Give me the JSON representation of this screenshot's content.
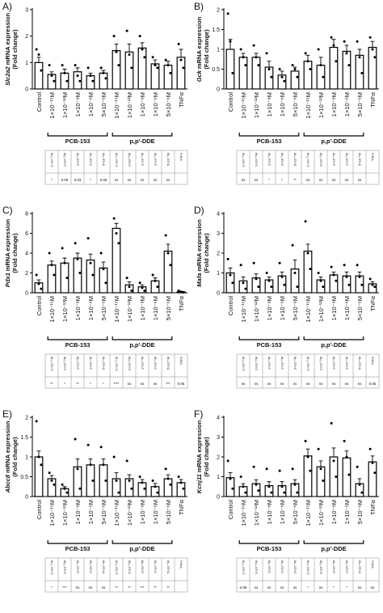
{
  "chart_data": [
    {
      "type": "bar",
      "panel": "A)",
      "gene": "Slc2a2",
      "ylabel": [
        "mRNA expression",
        "(Fold change)"
      ],
      "color": "#ffffff",
      "categories": [
        "Control",
        "1×10⁻¹⁵M",
        "1×10⁻¹²M",
        "1×10⁻⁹M",
        "1×10⁻⁶M",
        "5×10⁻⁶M",
        "1×10⁻¹⁵M",
        "1×10⁻¹²M",
        "1×10⁻⁹M",
        "1×10⁻⁶M",
        "5×10⁻⁶M",
        "TNFα"
      ],
      "groups": [
        "PCB-153",
        "p,p'-DDE"
      ],
      "values": [
        1.0,
        0.55,
        0.6,
        0.65,
        0.5,
        0.6,
        1.45,
        1.4,
        1.55,
        0.95,
        0.9,
        1.2
      ],
      "errors": [
        0.2,
        0.1,
        0.15,
        0.15,
        0.1,
        0.1,
        0.25,
        0.3,
        0.2,
        0.15,
        0.15,
        0.3
      ],
      "points": [
        [
          1.5,
          1.3,
          0.7
        ],
        [
          0.9,
          0.5,
          0.3
        ],
        [
          0.9,
          0.6,
          0.3
        ],
        [
          0.9,
          0.5,
          0.3
        ],
        [
          0.8,
          0.5,
          0.3
        ],
        [
          0.8,
          0.6,
          0.4
        ],
        [
          2.0,
          1.4,
          0.9
        ],
        [
          2.2,
          1.3,
          0.8
        ],
        [
          2.0,
          1.5,
          1.2
        ],
        [
          1.2,
          0.9,
          0.8
        ],
        [
          1.1,
          0.9,
          0.6
        ],
        [
          1.7,
          1.1,
          0.8
        ]
      ],
      "significance": [
        "*",
        "0.05",
        "0.03",
        "*",
        "0.05",
        "ns",
        "ns",
        "ns",
        "ns",
        "ns",
        null
      ],
      "ylim": [
        0,
        3
      ],
      "yticks": [
        0,
        1,
        2,
        3
      ]
    },
    {
      "type": "bar",
      "panel": "B)",
      "gene": "Gck",
      "ylabel": [
        "mRNA expression",
        "(Fold change)"
      ],
      "color": "#ffffff",
      "categories": [
        "Control",
        "1×10⁻¹⁵M",
        "1×10⁻¹²M",
        "1×10⁻⁹M",
        "1×10⁻⁶M",
        "5×10⁻⁶M",
        "1×10⁻¹⁵M",
        "1×10⁻¹²M",
        "1×10⁻⁹M",
        "1×10⁻⁶M",
        "5×10⁻⁶M",
        "TNFα"
      ],
      "groups": [
        "PCB-153",
        "p,p'-DDE"
      ],
      "values": [
        1.0,
        0.8,
        0.8,
        0.55,
        0.35,
        0.45,
        0.7,
        0.6,
        1.05,
        0.95,
        0.85,
        1.05
      ],
      "errors": [
        0.25,
        0.1,
        0.1,
        0.15,
        0.1,
        0.1,
        0.15,
        0.2,
        0.2,
        0.15,
        0.15,
        0.15
      ],
      "points": [
        [
          1.9,
          1.2,
          0.4
        ],
        [
          1.0,
          0.8,
          0.6
        ],
        [
          1.1,
          0.8,
          0.6
        ],
        [
          0.9,
          0.5,
          0.3
        ],
        [
          0.5,
          0.3,
          0.2
        ],
        [
          0.6,
          0.5,
          0.3
        ],
        [
          0.9,
          0.7,
          0.5
        ],
        [
          1.0,
          0.6,
          0.3
        ],
        [
          1.3,
          1.1,
          0.7
        ],
        [
          1.2,
          0.9,
          0.6
        ],
        [
          1.2,
          0.8,
          0.4
        ],
        [
          1.3,
          1.0,
          0.8
        ]
      ],
      "significance": [
        "ns",
        "ns",
        "*",
        "*",
        "**",
        "ns",
        "ns",
        "ns",
        "ns",
        "ns",
        null
      ],
      "ylim": [
        0,
        2
      ],
      "yticks": [
        0,
        0.5,
        1,
        1.5,
        2
      ]
    },
    {
      "type": "bar",
      "panel": "C)",
      "gene": "Pdx1",
      "ylabel": [
        "mRNA expression",
        "(Fold change)"
      ],
      "color": "#ffffff",
      "categories": [
        "Control",
        "1×10⁻¹⁵M",
        "1×10⁻¹²M",
        "1×10⁻⁹M",
        "1×10⁻⁶M",
        "5×10⁻⁶M",
        "1×10⁻¹⁵M",
        "1×10⁻¹²M",
        "1×10⁻⁹M",
        "1×10⁻⁶M",
        "5×10⁻⁶M",
        "TNFα"
      ],
      "groups": [
        "PCB-153",
        "p,p'-DDE"
      ],
      "values": [
        1.0,
        2.8,
        3.0,
        3.5,
        3.3,
        2.5,
        6.5,
        0.8,
        0.6,
        1.2,
        4.2,
        0.1
      ],
      "errors": [
        0.3,
        0.4,
        0.5,
        0.5,
        0.6,
        0.6,
        0.5,
        0.3,
        0.2,
        0.3,
        0.7,
        0.05
      ],
      "points": [
        [
          1.8,
          0.9,
          0.4
        ],
        [
          4.0,
          2.8,
          1.8
        ],
        [
          4.5,
          3.0,
          1.5
        ],
        [
          5.0,
          3.4,
          2.0
        ],
        [
          5.5,
          3.0,
          1.8
        ],
        [
          4.0,
          2.4,
          1.0
        ],
        [
          7.5,
          6.0,
          5.0
        ],
        [
          1.5,
          0.6,
          0.2
        ],
        [
          1.0,
          0.5,
          0.2
        ],
        [
          1.8,
          1.2,
          0.6
        ],
        [
          5.8,
          4.0,
          2.8
        ],
        [
          0.2,
          0.1,
          0.05
        ]
      ],
      "significance": [
        "**",
        "*",
        "**",
        "*",
        "*",
        "****",
        "ns",
        "ns",
        "ns",
        "***",
        "0.05"
      ],
      "ylim": [
        0,
        8
      ],
      "yticks": [
        0,
        2,
        4,
        6,
        8
      ]
    },
    {
      "type": "bar",
      "panel": "D)",
      "gene": "Mafa",
      "ylabel": [
        "mRNA expression",
        "(Fold change)"
      ],
      "color": "#ffffff",
      "categories": [
        "Control",
        "1×10⁻¹⁵M",
        "1×10⁻¹²M",
        "1×10⁻⁹M",
        "1×10⁻⁶M",
        "5×10⁻⁶M",
        "1×10⁻¹⁵M",
        "1×10⁻¹²M",
        "1×10⁻⁹M",
        "1×10⁻⁶M",
        "5×10⁻⁶M",
        "TNFα"
      ],
      "groups": [
        "PCB-153",
        "p,p'-DDE"
      ],
      "values": [
        1.0,
        0.6,
        0.75,
        0.65,
        0.85,
        1.2,
        2.1,
        0.65,
        0.9,
        0.85,
        0.85,
        0.45
      ],
      "errors": [
        0.25,
        0.2,
        0.2,
        0.15,
        0.2,
        0.45,
        0.35,
        0.15,
        0.15,
        0.2,
        0.2,
        0.1
      ],
      "points": [
        [
          1.7,
          0.9,
          0.5
        ],
        [
          1.4,
          0.5,
          0.2
        ],
        [
          1.5,
          0.7,
          0.3
        ],
        [
          1.0,
          0.6,
          0.3
        ],
        [
          1.5,
          0.8,
          0.4
        ],
        [
          2.4,
          1.0,
          0.3
        ],
        [
          3.6,
          2.0,
          1.2
        ],
        [
          1.0,
          0.6,
          0.3
        ],
        [
          1.3,
          0.9,
          0.6
        ],
        [
          1.4,
          0.8,
          0.4
        ],
        [
          1.4,
          0.8,
          0.4
        ],
        [
          0.7,
          0.4,
          0.3
        ]
      ],
      "significance": [
        "ns",
        "ns",
        "ns",
        "ns",
        "ns",
        "ns",
        "ns",
        "ns",
        "ns",
        "ns",
        "0.05"
      ],
      "ylim": [
        0,
        4
      ],
      "yticks": [
        0,
        1,
        2,
        3,
        4
      ]
    },
    {
      "type": "bar",
      "panel": "E)",
      "gene": "Abcc8",
      "ylabel": [
        "mRNA expression",
        "(Fold change)"
      ],
      "color": "#ffffff",
      "categories": [
        "Control",
        "1×10⁻¹⁵M",
        "1×10⁻¹²M",
        "1×10⁻⁹M",
        "1×10⁻⁶M",
        "5×10⁻⁶M",
        "1×10⁻¹⁵M",
        "1×10⁻¹²M",
        "1×10⁻⁹M",
        "1×10⁻⁶M",
        "5×10⁻⁶M",
        "TNFα"
      ],
      "groups": [
        "PCB-153",
        "p,p'-DDE"
      ],
      "values": [
        1.0,
        0.45,
        0.2,
        0.75,
        0.8,
        0.8,
        0.45,
        0.45,
        0.35,
        0.25,
        0.45,
        0.35
      ],
      "errors": [
        0.15,
        0.08,
        0.05,
        0.2,
        0.15,
        0.15,
        0.15,
        0.1,
        0.08,
        0.08,
        0.1,
        0.08
      ],
      "points": [
        [
          1.9,
          1.0,
          0.8
        ],
        [
          0.6,
          0.4,
          0.3
        ],
        [
          0.3,
          0.2,
          0.1
        ],
        [
          1.45,
          0.7,
          0.2
        ],
        [
          1.3,
          0.8,
          0.4
        ],
        [
          1.25,
          0.8,
          0.4
        ],
        [
          1.0,
          0.4,
          0.1
        ],
        [
          0.9,
          0.4,
          0.2
        ],
        [
          0.5,
          0.35,
          0.2
        ],
        [
          0.4,
          0.25,
          0.1
        ],
        [
          0.7,
          0.45,
          0.3
        ],
        [
          0.5,
          0.35,
          0.2
        ]
      ],
      "significance": [
        "*",
        "***",
        "ns",
        "ns",
        "ns",
        "**",
        "**",
        "***",
        "**",
        "**",
        null
      ],
      "ylim": [
        0,
        2
      ],
      "yticks": [
        0,
        0.5,
        1,
        1.5,
        2
      ]
    },
    {
      "type": "bar",
      "panel": "F)",
      "gene": "Kcnj11",
      "ylabel": [
        "mRNA expression",
        "(Fold change)"
      ],
      "color": "#ffffff",
      "categories": [
        "Control",
        "1×10⁻¹⁵M",
        "1×10⁻¹²M",
        "1×10⁻⁹M",
        "1×10⁻⁶M",
        "5×10⁻⁶M",
        "1×10⁻¹⁵M",
        "1×10⁻¹²M",
        "1×10⁻⁹M",
        "1×10⁻⁶M",
        "5×10⁻⁶M",
        "TNFα"
      ],
      "groups": [
        "PCB-153",
        "p,p'-DDE"
      ],
      "values": [
        0.95,
        0.5,
        0.65,
        0.55,
        0.55,
        0.65,
        2.05,
        1.5,
        2.0,
        1.95,
        0.65,
        1.75
      ],
      "errors": [
        0.25,
        0.15,
        0.2,
        0.2,
        0.2,
        0.2,
        0.35,
        0.3,
        0.45,
        0.35,
        0.25,
        0.3
      ],
      "points": [
        [
          1.8,
          0.9,
          0.4
        ],
        [
          1.0,
          0.5,
          0.2
        ],
        [
          1.5,
          0.6,
          0.3
        ],
        [
          1.4,
          0.5,
          0.2
        ],
        [
          1.3,
          0.5,
          0.2
        ],
        [
          1.4,
          0.6,
          0.2
        ],
        [
          2.8,
          2.0,
          1.3
        ],
        [
          2.4,
          1.4,
          0.8
        ],
        [
          3.7,
          1.8,
          1.0
        ],
        [
          2.8,
          2.0,
          1.1
        ],
        [
          1.5,
          0.6,
          0.2
        ],
        [
          2.4,
          1.7,
          1.2
        ]
      ],
      "significance": [
        "0.08",
        "ns",
        "ns",
        "ns",
        "ns",
        "*",
        "ns",
        "*",
        "*",
        "ns",
        "ns"
      ],
      "ylim": [
        0,
        4
      ],
      "yticks": [
        0,
        1,
        2,
        3,
        4
      ]
    }
  ]
}
